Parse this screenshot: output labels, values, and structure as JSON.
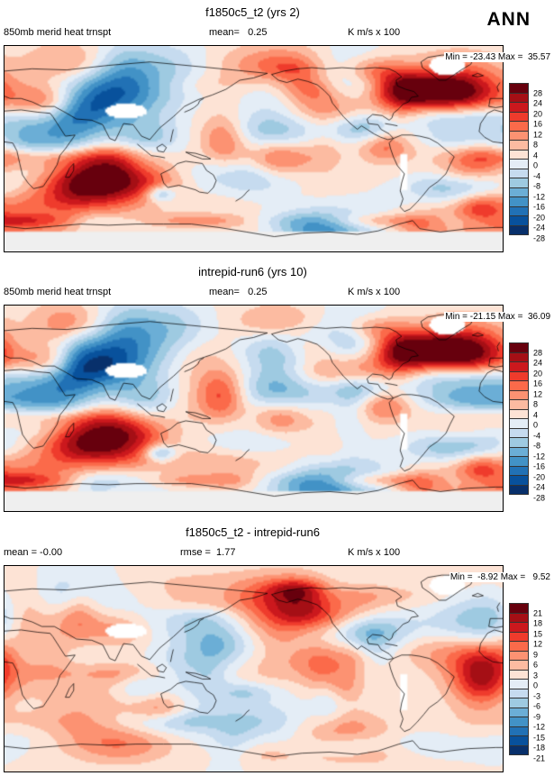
{
  "header": {
    "season": "ANN"
  },
  "palette": {
    "diverging_16_top_to_bottom": [
      "#67000d",
      "#a50f15",
      "#cb181d",
      "#ef3b2c",
      "#fb6a4a",
      "#fc9272",
      "#fcbba1",
      "#fde3d5",
      "#e4edf6",
      "#c6dbef",
      "#9ecae1",
      "#6baed6",
      "#4292c6",
      "#2171b5",
      "#08519c",
      "#08306b"
    ],
    "masked": "#ffffff",
    "antarctic_interior": "#efefef"
  },
  "chart_data": [
    {
      "type": "heatmap",
      "projection": "global-latlon-cyclic",
      "title": "f1850c5_t2 (yrs 2)",
      "variable": "850mb merid heat trnspt",
      "mean_text": "mean=   0.25",
      "mean": 0.25,
      "units": "K m/s x 100",
      "min": -23.43,
      "max": 35.57,
      "minmax_label": "Min = -23.43 Max =  35.57",
      "colorbar_levels": [
        28,
        24,
        20,
        16,
        12,
        8,
        4,
        0,
        -4,
        -8,
        -12,
        -16,
        -20,
        -24,
        -28
      ]
    },
    {
      "type": "heatmap",
      "projection": "global-latlon-cyclic",
      "title": "intrepid-run6 (yrs 10)",
      "variable": "850mb merid heat trnspt",
      "mean_text": "mean=   0.25",
      "mean": 0.25,
      "units": "K m/s x 100",
      "min": -21.15,
      "max": 36.09,
      "minmax_label": "Min = -21.15 Max =  36.09",
      "colorbar_levels": [
        28,
        24,
        20,
        16,
        12,
        8,
        4,
        0,
        -4,
        -8,
        -12,
        -16,
        -20,
        -24,
        -28
      ]
    },
    {
      "type": "heatmap",
      "projection": "global-latlon-cyclic",
      "title": "f1850c5_t2 - intrepid-run6",
      "mean_text": "mean = -0.00",
      "mean": -0.0,
      "rmse_text": "rmse =  1.77",
      "rmse": 1.77,
      "units": "K m/s x 100",
      "min": -8.92,
      "max": 9.52,
      "minmax_label": "Min =  -8.92 Max =   9.52",
      "colorbar_levels": [
        21,
        18,
        15,
        12,
        9,
        6,
        3,
        0,
        -3,
        -6,
        -9,
        -12,
        -15,
        -18,
        -21
      ]
    }
  ]
}
